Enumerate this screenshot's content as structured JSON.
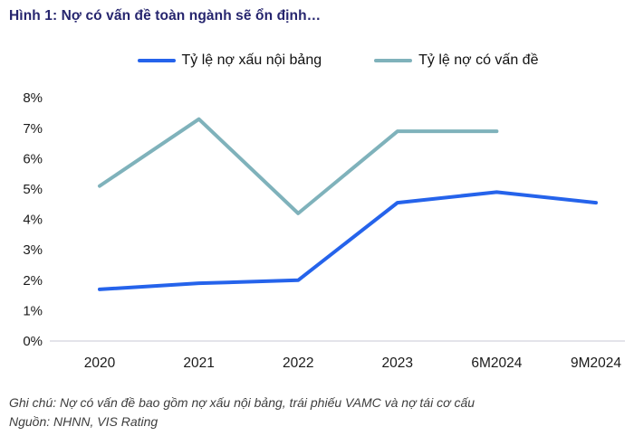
{
  "figure": {
    "title": "Hình 1: Nợ có vấn đề toàn ngành sẽ ổn định…",
    "note": "Ghi chú: Nợ có vấn đề bao gồm nợ xấu nội bảng, trái phiếu VAMC và nợ tái cơ cấu",
    "source": "Nguồn: NHNN, VIS Rating"
  },
  "colors": {
    "title": "#26256E",
    "npl_line": "#2563EB",
    "problem_line": "#7FB2BB",
    "axis_line": "#DCDCE4",
    "tick_text": "#1A1A1A",
    "note_text": "#3D3D3D"
  },
  "chart_data": {
    "type": "line",
    "categories": [
      "2020",
      "2021",
      "2022",
      "2023",
      "6M2024",
      "9M2024"
    ],
    "series": [
      {
        "name": "Tỷ lệ nợ xấu nội bảng",
        "color_key": "npl_line",
        "values": [
          1.7,
          1.9,
          2.0,
          4.55,
          4.9,
          4.55
        ]
      },
      {
        "name": "Tỷ lệ nợ có vấn đề",
        "color_key": "problem_line",
        "values": [
          5.1,
          7.3,
          4.2,
          6.9,
          6.9,
          null
        ]
      }
    ],
    "ylim": [
      0,
      8
    ],
    "ytick_step": 1,
    "ytick_labels": [
      "0%",
      "1%",
      "2%",
      "3%",
      "4%",
      "5%",
      "6%",
      "7%",
      "8%"
    ],
    "legend_position": "top-center",
    "grid": false
  }
}
